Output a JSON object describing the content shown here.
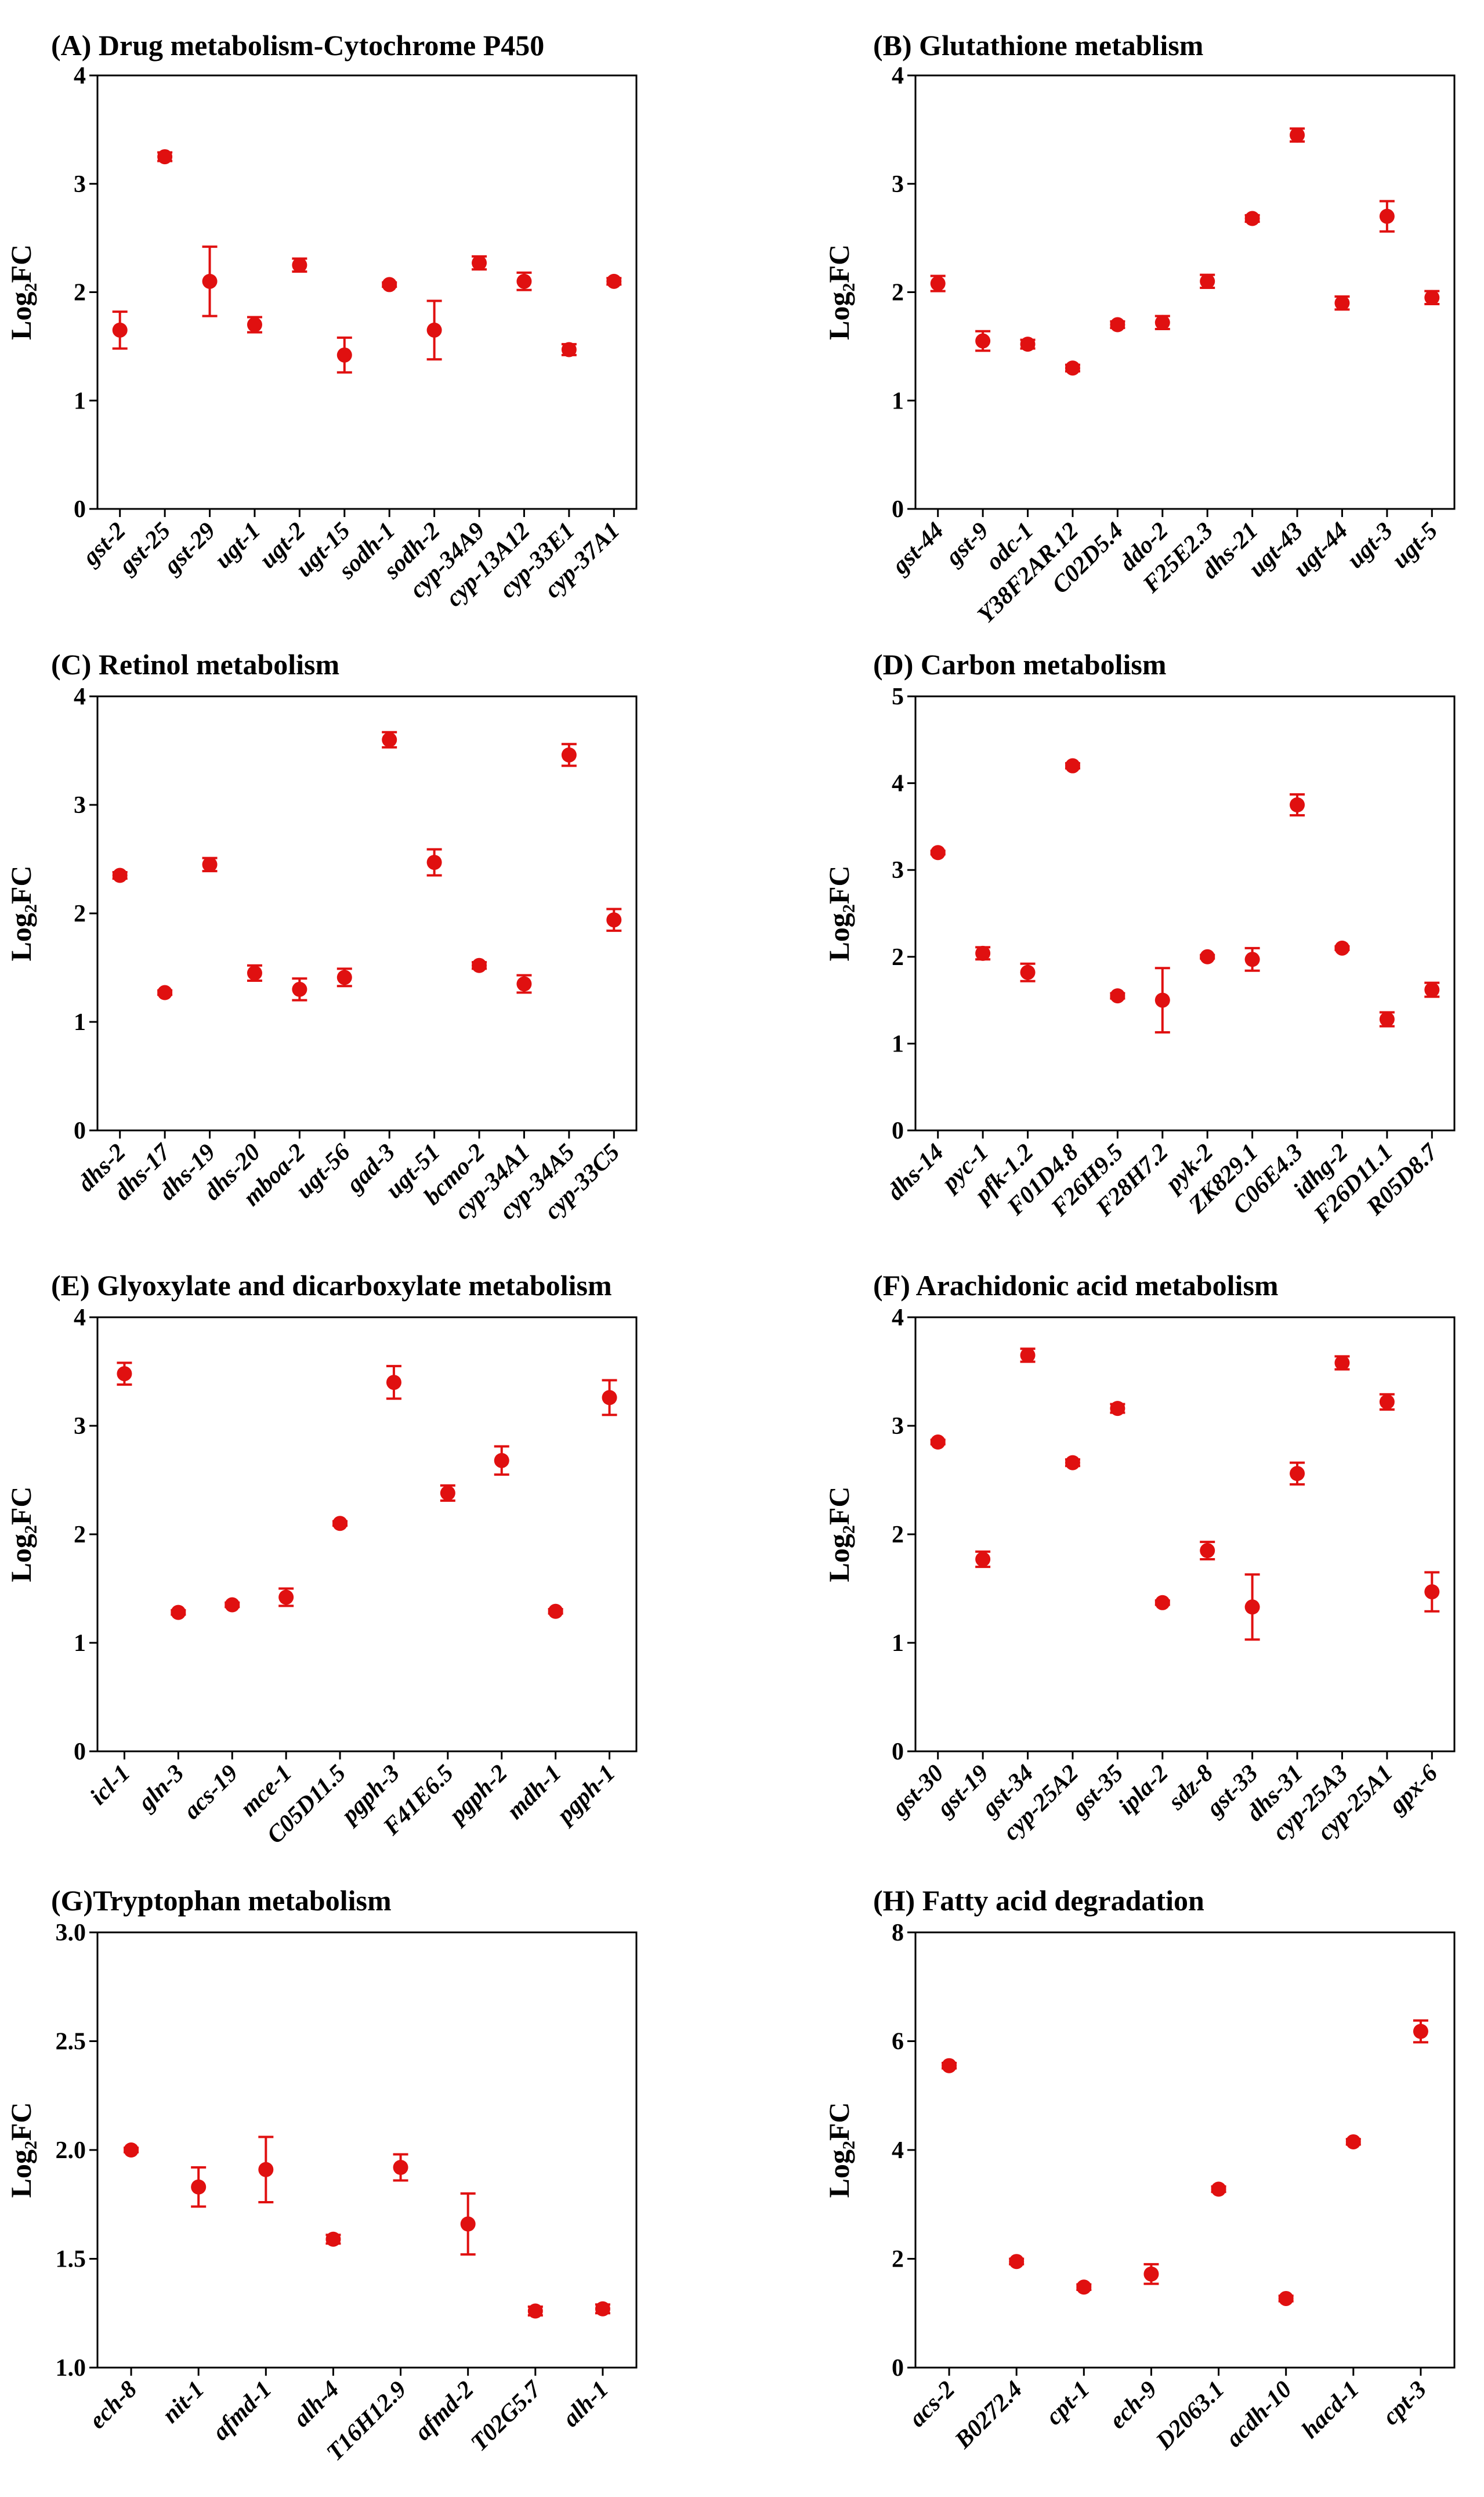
{
  "figure": {
    "marker_color": "#e01010",
    "axis_color": "#000000"
  },
  "chart_data": [
    {
      "type": "scatter",
      "title": "(A) Drug metabolism-Cytochrome P450",
      "xlabel": "",
      "ylabel": "Log₂FC",
      "ylim": [
        0,
        4
      ],
      "yticks": [
        0,
        1,
        2,
        3,
        4
      ],
      "categories": [
        "gst-2",
        "gst-25",
        "gst-29",
        "ugt-1",
        "ugt-2",
        "ugt-15",
        "sodh-1",
        "sodh-2",
        "cyp-34A9",
        "cyp-13A12",
        "cyp-33E1",
        "cyp-37A1"
      ],
      "values": [
        1.65,
        3.25,
        2.1,
        1.7,
        2.25,
        1.42,
        2.07,
        1.65,
        2.27,
        2.1,
        1.47,
        2.1
      ],
      "errors": [
        0.17,
        0.04,
        0.32,
        0.07,
        0.06,
        0.16,
        0.02,
        0.27,
        0.06,
        0.08,
        0.05,
        0.03
      ]
    },
    {
      "type": "scatter",
      "title": "(B) Glutathione metablism",
      "xlabel": "",
      "ylabel": "Log₂FC",
      "ylim": [
        0,
        4
      ],
      "yticks": [
        0,
        1,
        2,
        3,
        4
      ],
      "categories": [
        "gst-44",
        "gst-9",
        "odc-1",
        "Y38F2AR.12",
        "C02D5.4",
        "ddo-2",
        "F25E2.3",
        "dhs-21",
        "ugt-43",
        "ugt-44",
        "ugt-3",
        "ugt-5"
      ],
      "values": [
        2.08,
        1.55,
        1.52,
        1.3,
        1.7,
        1.72,
        2.1,
        2.68,
        3.45,
        1.9,
        2.7,
        1.95
      ],
      "errors": [
        0.07,
        0.09,
        0.04,
        0.03,
        0.03,
        0.06,
        0.06,
        0.03,
        0.06,
        0.06,
        0.14,
        0.06
      ]
    },
    {
      "type": "scatter",
      "title": "(C) Retinol metabolism",
      "xlabel": "",
      "ylabel": "Log₂FC",
      "ylim": [
        0,
        4
      ],
      "yticks": [
        0,
        1,
        2,
        3,
        4
      ],
      "categories": [
        "dhs-2",
        "dhs-17",
        "dhs-19",
        "dhs-20",
        "mboa-2",
        "ugt-56",
        "gad-3",
        "ugt-51",
        "bcmo-2",
        "cyp-34A1",
        "cyp-34A5",
        "cyp-33C5"
      ],
      "values": [
        2.35,
        1.27,
        2.45,
        1.45,
        1.3,
        1.41,
        3.6,
        2.47,
        1.52,
        1.35,
        3.46,
        1.94
      ],
      "errors": [
        0.03,
        0.02,
        0.06,
        0.07,
        0.1,
        0.08,
        0.07,
        0.12,
        0.03,
        0.08,
        0.1,
        0.1
      ]
    },
    {
      "type": "scatter",
      "title": "(D) Carbon metabolism",
      "xlabel": "",
      "ylabel": "Log₂FC",
      "ylim": [
        0,
        5
      ],
      "yticks": [
        0,
        1,
        2,
        3,
        4,
        5
      ],
      "categories": [
        "dhs-14",
        "pyc-1",
        "pfk-1.2",
        "F01D4.8",
        "F26H9.5",
        "F28H7.2",
        "pyk-2",
        "ZK829.1",
        "C06E4.3",
        "idhg-2",
        "F26D11.1",
        "R05D8.7"
      ],
      "values": [
        3.2,
        2.04,
        1.82,
        4.2,
        1.55,
        1.5,
        2.0,
        1.97,
        3.75,
        2.1,
        1.28,
        1.62
      ],
      "errors": [
        0.02,
        0.07,
        0.1,
        0.03,
        0.03,
        0.37,
        0.02,
        0.13,
        0.12,
        0.02,
        0.08,
        0.08
      ]
    },
    {
      "type": "scatter",
      "title": "(E) Glyoxylate and dicarboxylate metabolism",
      "xlabel": "",
      "ylabel": "Log₂FC",
      "ylim": [
        0,
        4
      ],
      "yticks": [
        0,
        1,
        2,
        3,
        4
      ],
      "categories": [
        "icl-1",
        "gln-3",
        "acs-19",
        "mce-1",
        "C05D11.5",
        "pgph-3",
        "F41E6.5",
        "pgph-2",
        "mdh-1",
        "pgph-1"
      ],
      "values": [
        3.48,
        1.28,
        1.35,
        1.42,
        2.1,
        3.4,
        2.38,
        2.68,
        1.29,
        3.26
      ],
      "errors": [
        0.1,
        0.02,
        0.02,
        0.08,
        0.02,
        0.15,
        0.07,
        0.13,
        0.02,
        0.16
      ]
    },
    {
      "type": "scatter",
      "title": "(F) Arachidonic acid metabolism",
      "xlabel": "",
      "ylabel": "Log₂FC",
      "ylim": [
        0,
        4
      ],
      "yticks": [
        0,
        1,
        2,
        3,
        4
      ],
      "categories": [
        "gst-30",
        "gst-19",
        "gst-34",
        "cyp-25A2",
        "gst-35",
        "ipla-2",
        "sdz-8",
        "gst-33",
        "dhs-31",
        "cyp-25A3",
        "cyp-25A1",
        "gpx-6"
      ],
      "values": [
        2.85,
        1.77,
        3.65,
        2.66,
        3.16,
        1.37,
        1.85,
        1.33,
        2.56,
        3.58,
        3.22,
        1.47
      ],
      "errors": [
        0.02,
        0.07,
        0.06,
        0.03,
        0.04,
        0.02,
        0.08,
        0.3,
        0.1,
        0.06,
        0.07,
        0.18
      ]
    },
    {
      "type": "scatter",
      "title": "(G)Tryptophan metabolism",
      "xlabel": "",
      "ylabel": "Log₂FC",
      "ylim": [
        1.0,
        3.0
      ],
      "yticks": [
        1.0,
        1.5,
        2.0,
        2.5,
        3.0
      ],
      "ytick_labels": [
        "1.0",
        "1.5",
        "2.0",
        "2.5",
        "3.0"
      ],
      "categories": [
        "ech-8",
        "nit-1",
        "afmd-1",
        "alh-4",
        "T16H12.9",
        "afmd-2",
        "T02G5.7",
        "alh-1"
      ],
      "values": [
        2.0,
        1.83,
        1.91,
        1.59,
        1.92,
        1.66,
        1.26,
        1.27
      ],
      "errors": [
        0.01,
        0.09,
        0.15,
        0.02,
        0.06,
        0.14,
        0.02,
        0.02
      ]
    },
    {
      "type": "scatter",
      "title": "(H) Fatty acid degradation",
      "xlabel": "",
      "ylabel": "Log₂FC",
      "ylim": [
        0,
        8
      ],
      "yticks": [
        0,
        2,
        4,
        6,
        8
      ],
      "categories": [
        "acs-2",
        "B0272.4",
        "cpt-1",
        "ech-9",
        "D2063.1",
        "acdh-10",
        "hacd-1",
        "cpt-3"
      ],
      "values": [
        5.55,
        1.95,
        1.48,
        1.72,
        3.28,
        1.27,
        4.15,
        6.18
      ],
      "errors": [
        0.05,
        0.05,
        0.05,
        0.18,
        0.05,
        0.05,
        0.05,
        0.2
      ]
    }
  ]
}
